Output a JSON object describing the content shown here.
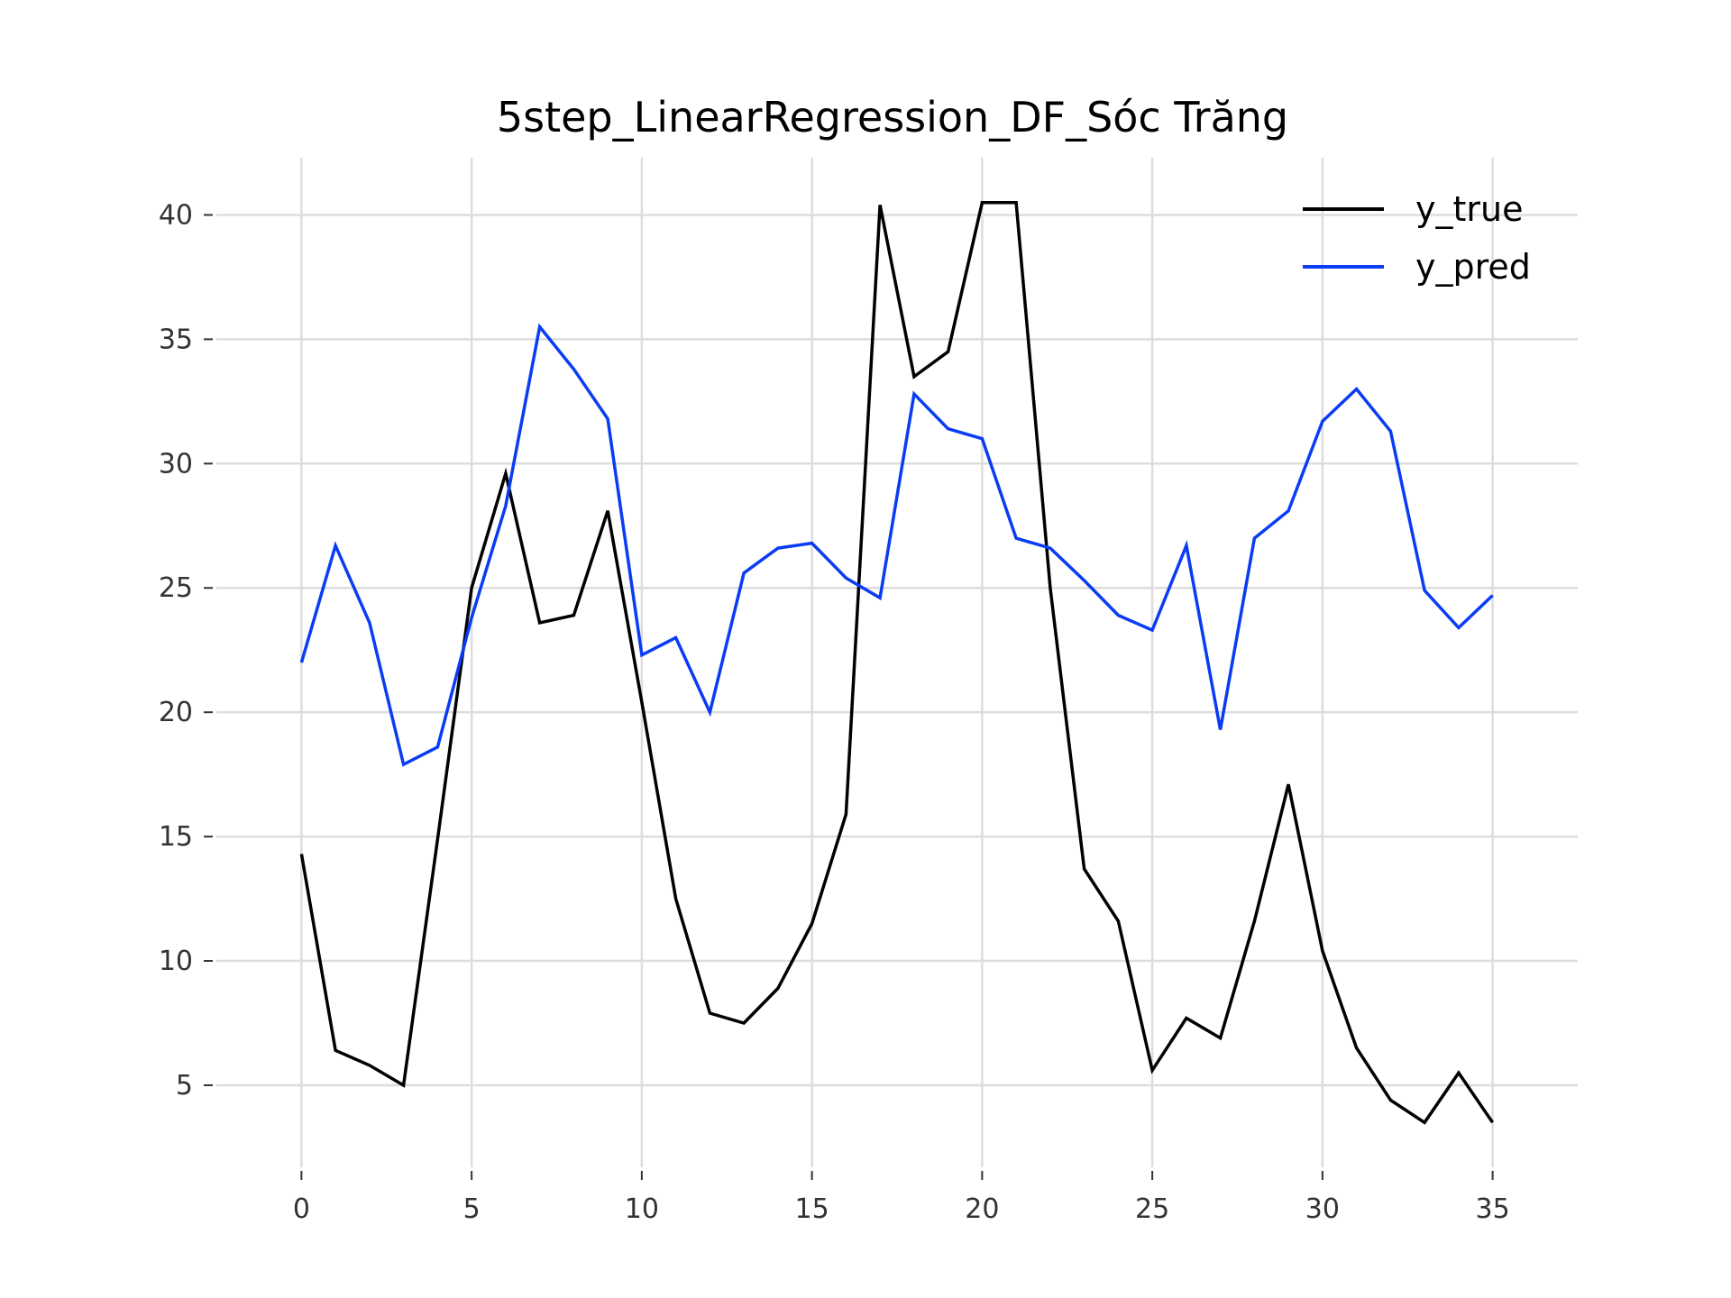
{
  "chart_data": {
    "type": "line",
    "title": "5step_LinearRegression_DF_Sóc Trăng",
    "xlabel": "",
    "ylabel": "",
    "xlim": [
      -2.5,
      37.5
    ],
    "ylim": [
      1.7,
      42.3
    ],
    "xticks": [
      0,
      5,
      10,
      15,
      20,
      25,
      30,
      35
    ],
    "yticks": [
      5,
      10,
      15,
      20,
      25,
      30,
      35,
      40
    ],
    "grid": true,
    "legend_position": "top-right",
    "x": [
      0,
      1,
      2,
      3,
      4,
      5,
      6,
      7,
      8,
      9,
      10,
      11,
      12,
      13,
      14,
      15,
      16,
      17,
      18,
      19,
      20,
      21,
      22,
      23,
      24,
      25,
      26,
      27,
      28,
      29,
      30,
      31,
      32,
      33,
      34,
      35
    ],
    "series": [
      {
        "name": "y_true",
        "color": "#000000",
        "values": [
          14.3,
          6.4,
          5.8,
          5.0,
          14.9,
          25.0,
          29.6,
          23.6,
          23.9,
          28.1,
          20.4,
          12.5,
          7.9,
          7.5,
          8.9,
          11.5,
          15.9,
          40.4,
          33.5,
          34.5,
          40.5,
          40.5,
          25.0,
          13.7,
          11.6,
          5.6,
          7.7,
          6.9,
          11.6,
          17.1,
          10.4,
          6.5,
          4.4,
          3.5,
          5.5,
          3.5
        ]
      },
      {
        "name": "y_pred",
        "color": "#0a3cf5",
        "values": [
          22.0,
          26.7,
          23.6,
          17.9,
          18.6,
          23.8,
          28.3,
          35.5,
          33.8,
          31.8,
          22.3,
          23.0,
          20.0,
          25.6,
          26.6,
          26.8,
          25.4,
          24.6,
          32.8,
          31.4,
          31.0,
          27.0,
          26.6,
          25.3,
          23.9,
          23.3,
          26.7,
          19.3,
          27.0,
          28.1,
          31.7,
          33.0,
          31.3,
          24.9,
          23.4,
          24.7
        ]
      }
    ]
  }
}
